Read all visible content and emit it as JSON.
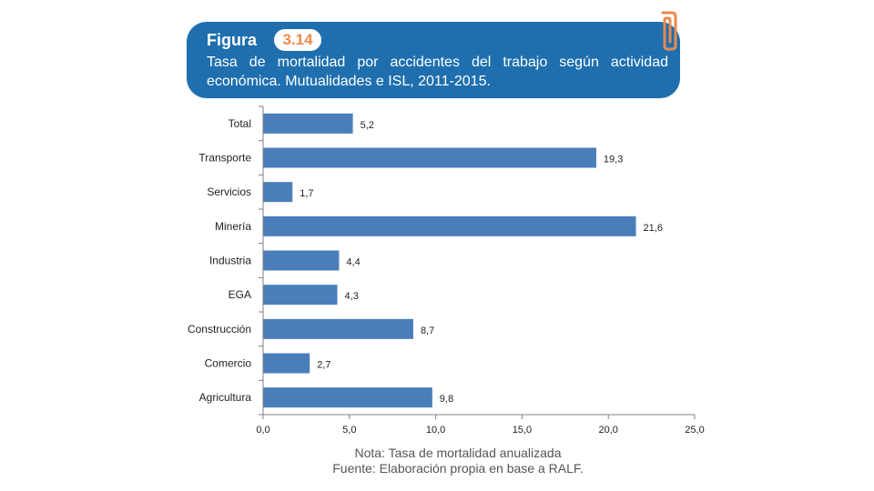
{
  "figure": {
    "label": "Figura",
    "number": "3.14",
    "title": "Tasa de mortalidad por accidentes del trabajo según actividad económica. Mutualidades e ISL, 2011-2015."
  },
  "colors": {
    "header_background": "#1f6fae",
    "number_text": "#f08a4b",
    "bar": "#4a7ebb",
    "axis": "#808080",
    "text": "#222222",
    "clip": "#e98a4d"
  },
  "chart_data": {
    "type": "bar",
    "orientation": "horizontal",
    "title": "Tasa de mortalidad por accidentes del trabajo según actividad económica. Mutualidades e ISL, 2011-2015.",
    "categories": [
      "Total",
      "Transporte",
      "Servicios",
      "Minería",
      "Industria",
      "EGA",
      "Construcción",
      "Comercio",
      "Agricultura"
    ],
    "values": [
      5.2,
      19.3,
      1.7,
      21.6,
      4.4,
      4.3,
      8.7,
      2.7,
      9.8
    ],
    "value_labels": [
      "5,2",
      "19,3",
      "1,7",
      "21,6",
      "4,4",
      "4,3",
      "8,7",
      "2,7",
      "9,8"
    ],
    "xlim": [
      0,
      25
    ],
    "xticks": [
      0,
      5,
      10,
      15,
      20,
      25
    ],
    "xtick_labels": [
      "0,0",
      "5,0",
      "10,0",
      "15,0",
      "20,0",
      "25,0"
    ],
    "xlabel": "",
    "ylabel": "",
    "grid": false,
    "legend": "none"
  },
  "notes": {
    "nota": "Nota: Tasa de mortalidad anualizada",
    "fuente": "Fuente: Elaboración propia en base a RALF."
  }
}
